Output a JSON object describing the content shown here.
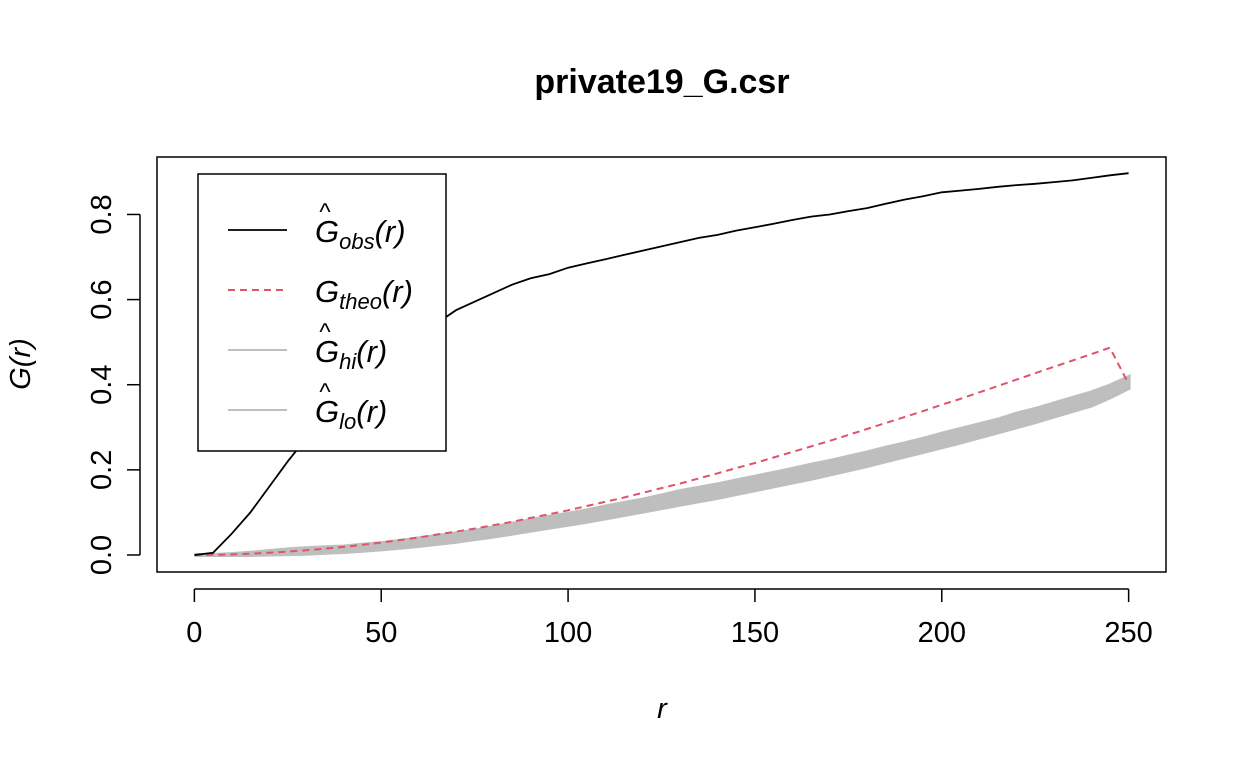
{
  "chart_data": {
    "type": "line",
    "title": "private19_G.csr",
    "xlabel": "r",
    "ylabel": "G(r)",
    "xlim": [
      -10,
      260
    ],
    "ylim": [
      -0.04,
      0.935
    ],
    "xticks": [
      0,
      50,
      100,
      150,
      200,
      250
    ],
    "xtick_labels": [
      "0",
      "50",
      "100",
      "150",
      "200",
      "250"
    ],
    "yticks": [
      0.0,
      0.2,
      0.4,
      0.6,
      0.8
    ],
    "ytick_labels": [
      "0.0",
      "0.2",
      "0.4",
      "0.6",
      "0.8"
    ],
    "grid": false,
    "legend_position": "top-left",
    "legend": [
      {
        "key": "obs",
        "base": "G",
        "hat": true,
        "sub": "obs",
        "arg": "(r)",
        "color": "#000000",
        "dash": "solid"
      },
      {
        "key": "theo",
        "base": "G",
        "hat": false,
        "sub": "theo",
        "arg": "(r)",
        "color": "#DF536B",
        "dash": "dashed"
      },
      {
        "key": "hi",
        "base": "G",
        "hat": true,
        "sub": "hi",
        "arg": "(r)",
        "color": "#BEBEBE",
        "dash": "solid"
      },
      {
        "key": "lo",
        "base": "G",
        "hat": true,
        "sub": "lo",
        "arg": "(r)",
        "color": "#BEBEBE",
        "dash": "solid"
      }
    ],
    "x": [
      0,
      5,
      10,
      15,
      20,
      25,
      30,
      35,
      40,
      45,
      50,
      55,
      60,
      65,
      70,
      75,
      80,
      85,
      90,
      95,
      100,
      105,
      110,
      115,
      120,
      125,
      130,
      135,
      140,
      145,
      150,
      155,
      160,
      165,
      170,
      175,
      180,
      185,
      190,
      195,
      200,
      205,
      210,
      215,
      220,
      225,
      230,
      235,
      240,
      245,
      250
    ],
    "series": [
      {
        "key": "obs",
        "color": "#000000",
        "values": [
          0.0,
          0.005,
          0.05,
          0.1,
          0.16,
          0.22,
          0.275,
          0.33,
          0.38,
          0.42,
          0.455,
          0.485,
          0.51,
          0.545,
          0.575,
          0.595,
          0.615,
          0.635,
          0.65,
          0.66,
          0.675,
          0.685,
          0.695,
          0.705,
          0.715,
          0.725,
          0.735,
          0.745,
          0.752,
          0.762,
          0.77,
          0.778,
          0.787,
          0.795,
          0.8,
          0.808,
          0.815,
          0.825,
          0.835,
          0.843,
          0.852,
          0.856,
          0.86,
          0.865,
          0.869,
          0.872,
          0.876,
          0.88,
          0.886,
          0.892,
          0.897
        ]
      },
      {
        "key": "theo",
        "color": "#DF536B",
        "values": [
          0.0,
          0.0003,
          0.001,
          0.003,
          0.005,
          0.008,
          0.011,
          0.015,
          0.019,
          0.024,
          0.029,
          0.035,
          0.041,
          0.048,
          0.055,
          0.062,
          0.07,
          0.078,
          0.087,
          0.096,
          0.105,
          0.115,
          0.125,
          0.135,
          0.146,
          0.157,
          0.168,
          0.18,
          0.192,
          0.204,
          0.216,
          0.229,
          0.242,
          0.255,
          0.268,
          0.282,
          0.296,
          0.31,
          0.324,
          0.338,
          0.353,
          0.367,
          0.382,
          0.397,
          0.412,
          0.427,
          0.442,
          0.457,
          0.472,
          0.487,
          0.402
        ]
      },
      {
        "key": "hi",
        "color": "#BEBEBE",
        "values": [
          0.0,
          0.0,
          0.002,
          0.005,
          0.009,
          0.013,
          0.016,
          0.018,
          0.02,
          0.024,
          0.028,
          0.033,
          0.039,
          0.045,
          0.051,
          0.057,
          0.065,
          0.073,
          0.082,
          0.09,
          0.097,
          0.105,
          0.114,
          0.122,
          0.13,
          0.14,
          0.15,
          0.158,
          0.166,
          0.175,
          0.184,
          0.193,
          0.202,
          0.212,
          0.221,
          0.231,
          0.241,
          0.252,
          0.262,
          0.273,
          0.285,
          0.296,
          0.307,
          0.318,
          0.332,
          0.343,
          0.356,
          0.369,
          0.382,
          0.398,
          0.418
        ]
      },
      {
        "key": "lo",
        "color": "#BEBEBE",
        "values": [
          0.0,
          0.0,
          0.0,
          0.0,
          0.001,
          0.002,
          0.003,
          0.005,
          0.007,
          0.01,
          0.013,
          0.017,
          0.021,
          0.026,
          0.031,
          0.037,
          0.043,
          0.05,
          0.057,
          0.064,
          0.071,
          0.078,
          0.086,
          0.094,
          0.102,
          0.11,
          0.118,
          0.126,
          0.134,
          0.143,
          0.152,
          0.161,
          0.17,
          0.179,
          0.189,
          0.199,
          0.209,
          0.22,
          0.231,
          0.242,
          0.253,
          0.264,
          0.276,
          0.288,
          0.3,
          0.312,
          0.325,
          0.338,
          0.351,
          0.37,
          0.392
        ]
      }
    ]
  }
}
